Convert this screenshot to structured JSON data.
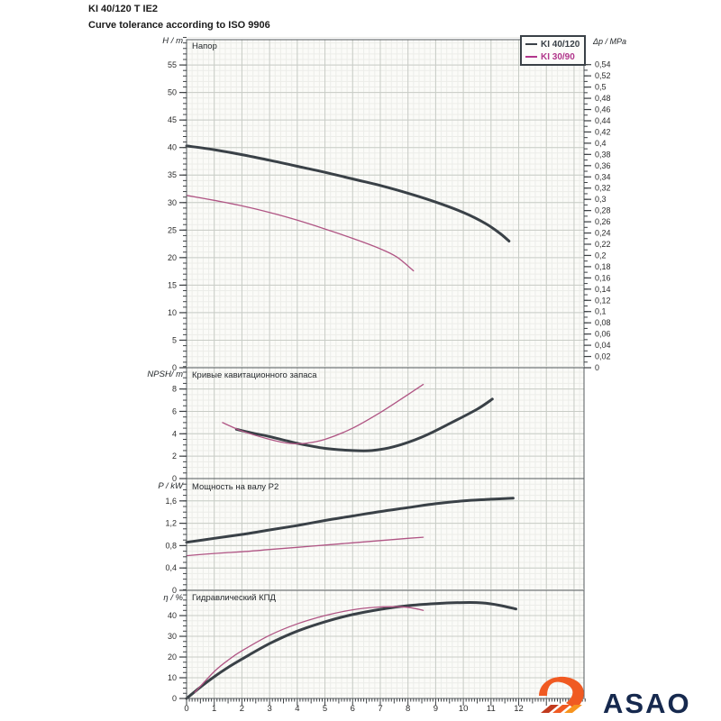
{
  "header": {
    "title": "KI 40/120 T IE2",
    "subtitle": "Curve tolerance according to ISO 9906"
  },
  "legend": {
    "items": [
      {
        "label": "KI 40/120",
        "color": "#3a4147"
      },
      {
        "label": "KI 30/90",
        "color": "#b1368b"
      }
    ]
  },
  "x_axis": {
    "range": [
      0,
      14.36
    ],
    "tick_values": [
      0,
      1,
      2,
      3,
      4,
      5,
      6,
      7,
      8,
      9,
      10,
      11,
      12
    ],
    "tick_labels": [
      "0",
      "1",
      "2",
      "3",
      "4",
      "5",
      "6",
      "7",
      "8",
      "9",
      "10",
      "11",
      "12"
    ],
    "minor_tick_step": 0.1,
    "grid_minor_step": 0.2
  },
  "chart_data": [
    {
      "type": "line",
      "title": "Напор",
      "ylabel": "H / m",
      "ylim": [
        0,
        59.6
      ],
      "minor_step": 1,
      "yticks": {
        "values": [
          0,
          5,
          10,
          15,
          20,
          25,
          30,
          35,
          40,
          45,
          50,
          55
        ],
        "labels": [
          "0",
          "5",
          "10",
          "15",
          "20",
          "25",
          "30",
          "35",
          "40",
          "45",
          "50",
          "55"
        ]
      },
      "right_axis": {
        "label": "Δp / MPa",
        "max": 0.54,
        "step": 0.02,
        "minor_step": 0.01,
        "m_per_mpa": 101.97,
        "tick_labels": [
          "0",
          "0,02",
          "0,04",
          "0,06",
          "0,08",
          "0,1",
          "0,12",
          "0,14",
          "0,16",
          "0,18",
          "0,2",
          "0,22",
          "0,24",
          "0,26",
          "0,28",
          "0,3",
          "0,32",
          "0,34",
          "0,36",
          "0,38",
          "0,4",
          "0,42",
          "0,44",
          "0,46",
          "0,48",
          "0,5",
          "0,52",
          "0,54"
        ]
      },
      "series": [
        {
          "name": "KI 40/120",
          "color": "#3a4147",
          "width": 3,
          "points": [
            [
              0,
              40.3
            ],
            [
              1,
              39.6
            ],
            [
              2,
              38.7
            ],
            [
              3,
              37.7
            ],
            [
              4,
              36.6
            ],
            [
              5,
              35.5
            ],
            [
              6,
              34.3
            ],
            [
              7,
              33.1
            ],
            [
              8,
              31.7
            ],
            [
              9,
              30.1
            ],
            [
              10,
              28.2
            ],
            [
              10.8,
              26.2
            ],
            [
              11.3,
              24.5
            ],
            [
              11.65,
              23.0
            ]
          ]
        },
        {
          "name": "KI 30/90",
          "color": "#b05584",
          "width": 1.3,
          "points": [
            [
              0,
              31.3
            ],
            [
              1,
              30.4
            ],
            [
              2,
              29.4
            ],
            [
              3,
              28.2
            ],
            [
              4,
              26.8
            ],
            [
              5,
              25.2
            ],
            [
              6,
              23.5
            ],
            [
              7,
              21.6
            ],
            [
              7.6,
              20.1
            ],
            [
              8.2,
              17.6
            ]
          ]
        }
      ]
    },
    {
      "type": "line",
      "title": "Кривые кавитационного запаса",
      "ylabel": "NPSH/ m",
      "ylim": [
        0,
        9.9
      ],
      "minor_step": 0.5,
      "yticks": {
        "values": [
          0,
          2,
          4,
          6,
          8
        ],
        "labels": [
          "0",
          "2",
          "4",
          "6",
          "8"
        ]
      },
      "series": [
        {
          "name": "KI 40/120",
          "color": "#3a4147",
          "width": 3,
          "points": [
            [
              1.8,
              4.4
            ],
            [
              2.5,
              4.0
            ],
            [
              3,
              3.75
            ],
            [
              4,
              3.15
            ],
            [
              5,
              2.7
            ],
            [
              6,
              2.5
            ],
            [
              6.7,
              2.5
            ],
            [
              7.5,
              2.85
            ],
            [
              8.5,
              3.7
            ],
            [
              9.5,
              4.9
            ],
            [
              10.5,
              6.2
            ],
            [
              11.05,
              7.1
            ]
          ]
        },
        {
          "name": "KI 30/90",
          "color": "#b05584",
          "width": 1.3,
          "points": [
            [
              1.3,
              5.0
            ],
            [
              2,
              4.25
            ],
            [
              3,
              3.5
            ],
            [
              3.7,
              3.15
            ],
            [
              4.3,
              3.15
            ],
            [
              5,
              3.5
            ],
            [
              6,
              4.5
            ],
            [
              7,
              5.9
            ],
            [
              8,
              7.5
            ],
            [
              8.55,
              8.4
            ]
          ]
        }
      ]
    },
    {
      "type": "line",
      "title": "Мощность на валу P2",
      "ylabel": "P / kW",
      "ylim": [
        0,
        2.0
      ],
      "minor_step": 0.1,
      "yticks": {
        "values": [
          0,
          0.4,
          0.8,
          1.2,
          1.6
        ],
        "labels": [
          "0",
          "0,4",
          "0,8",
          "1,2",
          "1,6"
        ]
      },
      "series": [
        {
          "name": "KI 40/120",
          "color": "#3a4147",
          "width": 3,
          "points": [
            [
              0,
              0.86
            ],
            [
              1,
              0.93
            ],
            [
              2,
              1.0
            ],
            [
              3,
              1.08
            ],
            [
              4,
              1.16
            ],
            [
              5,
              1.25
            ],
            [
              6,
              1.33
            ],
            [
              7,
              1.41
            ],
            [
              8,
              1.48
            ],
            [
              9,
              1.55
            ],
            [
              10,
              1.6
            ],
            [
              11,
              1.63
            ],
            [
              11.8,
              1.65
            ]
          ]
        },
        {
          "name": "KI 30/90",
          "color": "#b05584",
          "width": 1.3,
          "points": [
            [
              0,
              0.62
            ],
            [
              1,
              0.66
            ],
            [
              2,
              0.69
            ],
            [
              3,
              0.73
            ],
            [
              4,
              0.77
            ],
            [
              5,
              0.81
            ],
            [
              6,
              0.85
            ],
            [
              7,
              0.89
            ],
            [
              8,
              0.93
            ],
            [
              8.55,
              0.95
            ]
          ]
        }
      ]
    },
    {
      "type": "line",
      "title": "Гидравлический КПД",
      "ylabel": "η / %",
      "ylim": [
        0,
        52.2
      ],
      "minor_step": 2.5,
      "yticks": {
        "values": [
          0,
          10,
          20,
          30,
          40
        ],
        "labels": [
          "0",
          "10",
          "20",
          "30",
          "40"
        ]
      },
      "series": [
        {
          "name": "KI 40/120",
          "color": "#3a4147",
          "width": 3,
          "points": [
            [
              0,
              0
            ],
            [
              0.5,
              5.5
            ],
            [
              1,
              10.5
            ],
            [
              1.5,
              15
            ],
            [
              2,
              19
            ],
            [
              3,
              26.5
            ],
            [
              4,
              32.5
            ],
            [
              5,
              37
            ],
            [
              6,
              40.5
            ],
            [
              7,
              43
            ],
            [
              8,
              44.8
            ],
            [
              9,
              45.8
            ],
            [
              10,
              46.3
            ],
            [
              10.7,
              46.1
            ],
            [
              11.3,
              45
            ],
            [
              11.9,
              43.2
            ]
          ]
        },
        {
          "name": "KI 30/90",
          "color": "#b05584",
          "width": 1.3,
          "points": [
            [
              0.3,
              3
            ],
            [
              1,
              13
            ],
            [
              1.5,
              18.5
            ],
            [
              2,
              23
            ],
            [
              3,
              30.5
            ],
            [
              4,
              36
            ],
            [
              5,
              40
            ],
            [
              6,
              42.8
            ],
            [
              6.8,
              44
            ],
            [
              7.5,
              44.3
            ],
            [
              8.1,
              43.8
            ],
            [
              8.55,
              42.5
            ]
          ]
        }
      ]
    }
  ],
  "logo": {
    "text": "ASAO",
    "text_color": "#16294e",
    "icon": "asao-swoosh-icon",
    "icon_color": "#f05a22",
    "icon_color2": "#f7941e",
    "icon_color_dark": "#c13a1e"
  }
}
